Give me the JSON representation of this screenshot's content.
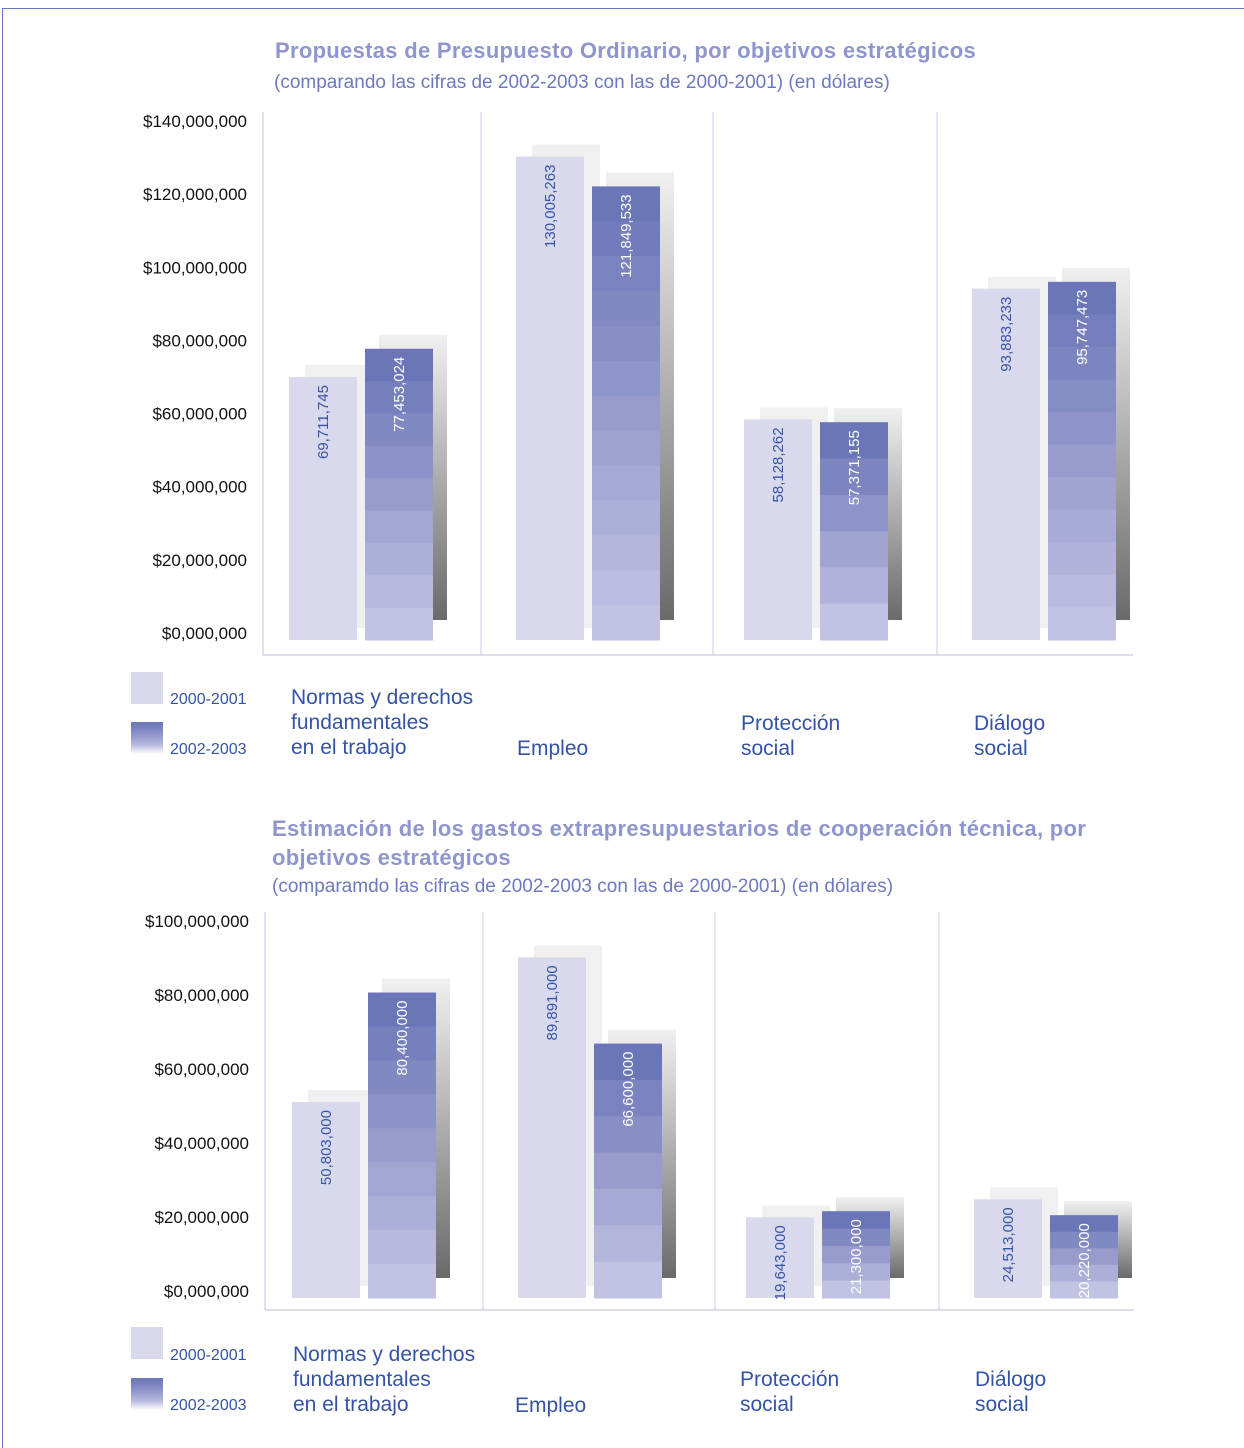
{
  "chart_data": [
    {
      "type": "bar",
      "title": "Propuestas de Presupuesto Ordinario, por objetivos estratégicos",
      "subtitle": "(comparando las cifras de 2002-2003 con las de 2000-2001) (en dólares)",
      "categories": [
        "Normas y derechos\nfundamentales\nen el trabajo",
        "Empleo",
        "Protección\nsocial",
        "Diálogo\nsocial"
      ],
      "series": [
        {
          "name": "2000-2001",
          "values": [
            69711745,
            130005263,
            58128262,
            93883233
          ],
          "labels": [
            "69,711,745",
            "130,005,263",
            "58,128,262",
            "93,883,233"
          ]
        },
        {
          "name": "2002-2003",
          "values": [
            77453024,
            121849533,
            57371155,
            95747473
          ],
          "labels": [
            "77,453,024",
            "121,849,533",
            "57,371,155",
            "95,747,473"
          ]
        }
      ],
      "yticks": [
        "$0,000,000",
        "$20,000,000",
        "$40,000,000",
        "$60,000,000",
        "$80,000,000",
        "$100,000,000",
        "$120,000,000",
        "$140,000,000"
      ],
      "ylim": [
        0,
        140000000
      ],
      "legend": "bottom-left",
      "grid": false
    },
    {
      "type": "bar",
      "title": "Estimación de los gastos extrapresupuestarios de cooperación técnica, por objetivos estratégicos",
      "subtitle": "(comparamdo las cifras de 2002-2003 con las de 2000-2001) (en dólares)",
      "categories": [
        "Normas y derechos\nfundamentales\nen el trabajo",
        "Empleo",
        "Protección\nsocial",
        "Diálogo\nsocial"
      ],
      "series": [
        {
          "name": "2000-2001",
          "values": [
            50803000,
            89891000,
            19643000,
            24513000
          ],
          "labels": [
            "50,803,000",
            "89,891,000",
            "19,643,000",
            "24,513,000"
          ]
        },
        {
          "name": "2002-2003",
          "values": [
            80400000,
            66600000,
            21300000,
            20220000
          ],
          "labels": [
            "80,400,000",
            "66,600,000",
            "21,300,000",
            "20,220,000"
          ]
        }
      ],
      "yticks": [
        "$0,000,000",
        "$20,000,000",
        "$40,000,000",
        "$60,000,000",
        "$80,000,000",
        "$100,000,000"
      ],
      "ylim": [
        0,
        100000000
      ],
      "legend": "bottom-left",
      "grid": false
    }
  ],
  "colors": {
    "title": "#8f95cd",
    "subtitle": "#6d78c0",
    "label_text": "#3553a5",
    "series_a": "#d9d9ee",
    "series_b_top": "#6b76b8",
    "series_b_bottom": "#c2c2e2",
    "shadow_light": "#f0f0f0",
    "shadow_dark": "#6a6a6a",
    "axis": "#c8cbe4"
  }
}
